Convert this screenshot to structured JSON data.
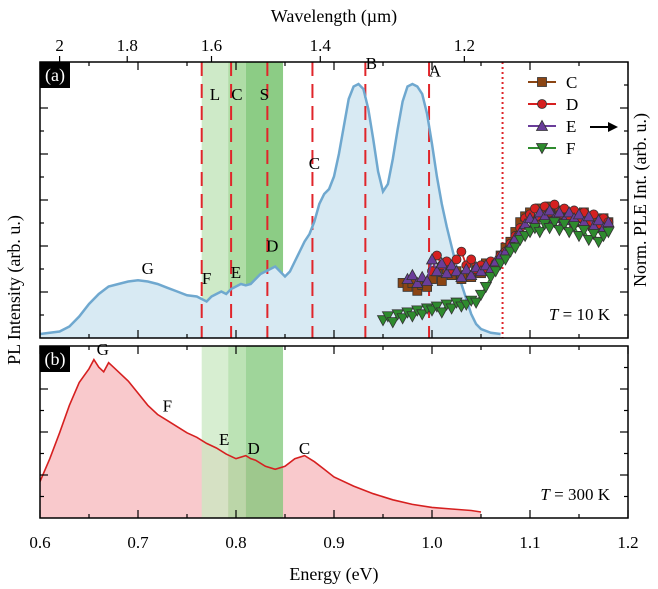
{
  "chart_data": [
    {
      "panel": "a",
      "type": "area",
      "panel_label": "(a)",
      "xlabel": "Energy (eV)",
      "ylabel_left": "PL Intensity (arb. u.)",
      "ylabel_right": "Norm. PLE Int. (arb. u.)",
      "top_axis_label": "Wavelength (µm)",
      "top_ticks": [
        {
          "label": "2",
          "energy": 0.62
        },
        {
          "label": "1.8",
          "energy": 0.689
        },
        {
          "label": "1.6",
          "energy": 0.775
        },
        {
          "label": "1.4",
          "energy": 0.886
        },
        {
          "label": "1.2",
          "energy": 1.033
        }
      ],
      "xlim": [
        0.6,
        1.2
      ],
      "temperature_text": "T = 10 K",
      "pl_spectrum": {
        "x": [
          0.6,
          0.61,
          0.62,
          0.63,
          0.64,
          0.65,
          0.66,
          0.67,
          0.68,
          0.69,
          0.7,
          0.71,
          0.72,
          0.73,
          0.74,
          0.75,
          0.76,
          0.765,
          0.77,
          0.775,
          0.78,
          0.785,
          0.79,
          0.795,
          0.8,
          0.805,
          0.81,
          0.815,
          0.82,
          0.825,
          0.83,
          0.835,
          0.84,
          0.845,
          0.85,
          0.855,
          0.86,
          0.865,
          0.87,
          0.875,
          0.88,
          0.885,
          0.89,
          0.895,
          0.9,
          0.905,
          0.91,
          0.915,
          0.92,
          0.925,
          0.93,
          0.935,
          0.94,
          0.945,
          0.95,
          0.955,
          0.96,
          0.965,
          0.97,
          0.975,
          0.98,
          0.985,
          0.99,
          0.995,
          1.0,
          1.005,
          1.01,
          1.015,
          1.02,
          1.025,
          1.03,
          1.035,
          1.04,
          1.045,
          1.05,
          1.06,
          1.07
        ],
        "y": [
          0.0,
          0.005,
          0.01,
          0.03,
          0.07,
          0.12,
          0.16,
          0.19,
          0.2,
          0.21,
          0.215,
          0.21,
          0.2,
          0.185,
          0.17,
          0.155,
          0.15,
          0.14,
          0.13,
          0.15,
          0.16,
          0.17,
          0.16,
          0.18,
          0.19,
          0.2,
          0.195,
          0.2,
          0.22,
          0.24,
          0.25,
          0.26,
          0.27,
          0.25,
          0.23,
          0.25,
          0.29,
          0.33,
          0.37,
          0.4,
          0.45,
          0.52,
          0.56,
          0.58,
          0.63,
          0.72,
          0.83,
          0.94,
          0.99,
          1.0,
          0.98,
          0.9,
          0.78,
          0.65,
          0.57,
          0.6,
          0.7,
          0.82,
          0.93,
          0.99,
          1.0,
          0.99,
          0.96,
          0.88,
          0.76,
          0.63,
          0.52,
          0.43,
          0.35,
          0.27,
          0.2,
          0.14,
          0.08,
          0.04,
          0.02,
          0.005,
          0.0
        ],
        "ylim": [
          0,
          1.08
        ]
      },
      "dashed_markers_ev": [
        0.765,
        0.795,
        0.832,
        0.878,
        0.932,
        0.997
      ],
      "dotted_marker_ev": 1.072,
      "bands": [
        {
          "label": "L",
          "x0": 0.765,
          "x1": 0.792,
          "color": "#c9e8c2"
        },
        {
          "label": "C",
          "x0": 0.792,
          "x1": 0.81,
          "color": "#a6d99c"
        },
        {
          "label": "S",
          "x0": 0.81,
          "x1": 0.848,
          "color": "#7fc778"
        }
      ],
      "peak_labels": [
        {
          "text": "G",
          "x": 0.71,
          "y": 0.24
        },
        {
          "text": "F",
          "x": 0.77,
          "y": 0.2
        },
        {
          "text": "E",
          "x": 0.8,
          "y": 0.225
        },
        {
          "text": "D",
          "x": 0.837,
          "y": 0.33
        },
        {
          "text": "C",
          "x": 0.88,
          "y": 0.66
        },
        {
          "text": "B",
          "x": 0.938,
          "y": 1.06
        },
        {
          "text": "A",
          "x": 1.003,
          "y": 1.03
        }
      ],
      "arrow_direction": "right",
      "ple": {
        "ylim": [
          0,
          1
        ],
        "legend_position": "top-right",
        "series": [
          {
            "name": "C",
            "color": "#8b4513",
            "marker": "square",
            "x": [
              0.97,
              0.975,
              0.98,
              0.985,
              0.99,
              0.995,
              1.0,
              1.005,
              1.01,
              1.015,
              1.02,
              1.025,
              1.03,
              1.035,
              1.04,
              1.045,
              1.05,
              1.055,
              1.06,
              1.065,
              1.07,
              1.075,
              1.08,
              1.085,
              1.09,
              1.095,
              1.1,
              1.105,
              1.11,
              1.115,
              1.12,
              1.125,
              1.13,
              1.135,
              1.14,
              1.145,
              1.15,
              1.155,
              1.16,
              1.165,
              1.17,
              1.175,
              1.18
            ],
            "y": [
              0.24,
              0.22,
              0.24,
              0.2,
              0.23,
              0.22,
              0.26,
              0.3,
              0.25,
              0.31,
              0.28,
              0.3,
              0.26,
              0.28,
              0.27,
              0.32,
              0.29,
              0.34,
              0.31,
              0.33,
              0.38,
              0.42,
              0.45,
              0.5,
              0.55,
              0.58,
              0.6,
              0.56,
              0.62,
              0.59,
              0.63,
              0.58,
              0.61,
              0.57,
              0.6,
              0.55,
              0.58,
              0.6,
              0.54,
              0.56,
              0.52,
              0.57,
              0.55
            ]
          },
          {
            "name": "D",
            "color": "#d62020",
            "marker": "circle",
            "x": [
              1.0,
              1.005,
              1.01,
              1.015,
              1.02,
              1.025,
              1.03,
              1.035,
              1.04,
              1.045,
              1.05,
              1.055,
              1.06,
              1.065,
              1.07,
              1.075,
              1.08,
              1.085,
              1.09,
              1.095,
              1.1,
              1.105,
              1.11,
              1.115,
              1.12,
              1.125,
              1.13,
              1.135,
              1.14,
              1.145,
              1.15,
              1.155,
              1.16,
              1.165,
              1.17,
              1.175,
              1.18
            ],
            "y": [
              0.3,
              0.38,
              0.33,
              0.35,
              0.3,
              0.36,
              0.4,
              0.33,
              0.36,
              0.31,
              0.33,
              0.3,
              0.35,
              0.34,
              0.38,
              0.4,
              0.44,
              0.48,
              0.52,
              0.57,
              0.59,
              0.62,
              0.58,
              0.63,
              0.6,
              0.64,
              0.59,
              0.62,
              0.58,
              0.61,
              0.57,
              0.6,
              0.55,
              0.59,
              0.54,
              0.57,
              0.55
            ]
          },
          {
            "name": "E",
            "color": "#6a3d9a",
            "marker": "triangle-up",
            "x": [
              0.975,
              0.98,
              0.985,
              0.99,
              0.995,
              1.0,
              1.005,
              1.01,
              1.015,
              1.02,
              1.025,
              1.03,
              1.035,
              1.04,
              1.045,
              1.05,
              1.055,
              1.06,
              1.065,
              1.07,
              1.075,
              1.08,
              1.085,
              1.09,
              1.095,
              1.1,
              1.105,
              1.11,
              1.115,
              1.12,
              1.125,
              1.13,
              1.135,
              1.14,
              1.145,
              1.15,
              1.155,
              1.16,
              1.165,
              1.17,
              1.175,
              1.18
            ],
            "y": [
              0.26,
              0.28,
              0.24,
              0.27,
              0.25,
              0.36,
              0.3,
              0.34,
              0.29,
              0.33,
              0.3,
              0.27,
              0.31,
              0.28,
              0.32,
              0.3,
              0.33,
              0.31,
              0.35,
              0.38,
              0.4,
              0.43,
              0.47,
              0.5,
              0.54,
              0.57,
              0.55,
              0.6,
              0.58,
              0.61,
              0.57,
              0.6,
              0.56,
              0.6,
              0.57,
              0.59,
              0.55,
              0.58,
              0.53,
              0.56,
              0.52,
              0.55
            ]
          },
          {
            "name": "F",
            "color": "#2e8b2e",
            "marker": "triangle-down",
            "x": [
              0.95,
              0.955,
              0.96,
              0.965,
              0.97,
              0.975,
              0.98,
              0.985,
              0.99,
              0.995,
              1.0,
              1.005,
              1.01,
              1.015,
              1.02,
              1.025,
              1.03,
              1.035,
              1.04,
              1.045,
              1.05,
              1.055,
              1.06,
              1.065,
              1.07,
              1.075,
              1.08,
              1.085,
              1.09,
              1.095,
              1.1,
              1.105,
              1.11,
              1.115,
              1.12,
              1.125,
              1.13,
              1.135,
              1.14,
              1.145,
              1.15,
              1.155,
              1.16,
              1.165,
              1.17,
              1.175,
              1.18
            ],
            "y": [
              0.05,
              0.07,
              0.04,
              0.08,
              0.06,
              0.09,
              0.07,
              0.1,
              0.08,
              0.11,
              0.1,
              0.12,
              0.09,
              0.13,
              0.11,
              0.14,
              0.12,
              0.13,
              0.15,
              0.14,
              0.18,
              0.22,
              0.27,
              0.3,
              0.34,
              0.36,
              0.4,
              0.42,
              0.46,
              0.48,
              0.5,
              0.52,
              0.5,
              0.54,
              0.52,
              0.55,
              0.51,
              0.54,
              0.5,
              0.53,
              0.48,
              0.51,
              0.46,
              0.49,
              0.45,
              0.48,
              0.5
            ]
          }
        ]
      }
    },
    {
      "panel": "b",
      "type": "area",
      "panel_label": "(b)",
      "xlabel": "Energy (eV)",
      "xlim": [
        0.6,
        1.2
      ],
      "x_ticks": [
        0.6,
        0.7,
        0.8,
        0.9,
        1.0,
        1.1,
        1.2
      ],
      "x_tick_labels": [
        "0.6",
        "0.7",
        "0.8",
        "0.9",
        "1.0",
        "1.1",
        "1.2"
      ],
      "temperature_text": "T = 300 K",
      "ylim": [
        0,
        1.05
      ],
      "pl_spectrum": {
        "x": [
          0.6,
          0.61,
          0.62,
          0.63,
          0.64,
          0.65,
          0.655,
          0.66,
          0.665,
          0.67,
          0.675,
          0.68,
          0.69,
          0.7,
          0.71,
          0.72,
          0.73,
          0.74,
          0.75,
          0.76,
          0.77,
          0.78,
          0.79,
          0.8,
          0.81,
          0.815,
          0.82,
          0.83,
          0.84,
          0.85,
          0.86,
          0.87,
          0.88,
          0.89,
          0.9,
          0.92,
          0.94,
          0.96,
          0.98,
          1.0,
          1.02,
          1.04,
          1.05
        ],
        "y": [
          0.2,
          0.35,
          0.52,
          0.7,
          0.85,
          0.94,
          1.0,
          0.95,
          0.92,
          0.98,
          0.95,
          0.92,
          0.86,
          0.78,
          0.7,
          0.64,
          0.6,
          0.56,
          0.52,
          0.49,
          0.45,
          0.42,
          0.38,
          0.35,
          0.37,
          0.35,
          0.34,
          0.3,
          0.28,
          0.3,
          0.35,
          0.37,
          0.33,
          0.28,
          0.23,
          0.17,
          0.12,
          0.08,
          0.05,
          0.03,
          0.02,
          0.01,
          0.0
        ]
      },
      "bands": [
        {
          "x0": 0.765,
          "x1": 0.792,
          "color": "#c9e8c2"
        },
        {
          "x0": 0.792,
          "x1": 0.81,
          "color": "#a6d99c"
        },
        {
          "x0": 0.81,
          "x1": 0.848,
          "color": "#7fc778"
        }
      ],
      "peak_labels": [
        {
          "text": "G",
          "x": 0.664,
          "y": 1.03
        },
        {
          "text": "F",
          "x": 0.73,
          "y": 0.66
        },
        {
          "text": "E",
          "x": 0.788,
          "y": 0.44
        },
        {
          "text": "D",
          "x": 0.818,
          "y": 0.38
        },
        {
          "text": "C",
          "x": 0.87,
          "y": 0.38
        }
      ]
    }
  ]
}
